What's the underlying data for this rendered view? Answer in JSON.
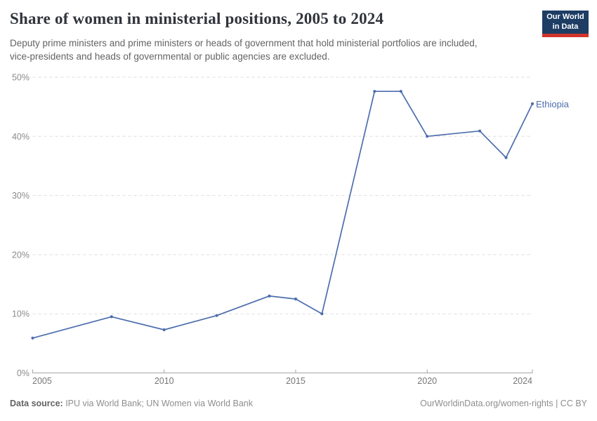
{
  "header": {
    "title": "Share of women in ministerial positions, 2005 to 2024",
    "subtitle": "Deputy prime ministers and prime ministers or heads of government that hold ministerial portfolios are included, vice-presidents and heads of governmental or public agencies are excluded.",
    "logo": {
      "line1": "Our World",
      "line2": "in Data"
    }
  },
  "chart_data": {
    "type": "line",
    "title": "Share of women in ministerial positions, 2005 to 2024",
    "xlabel": "",
    "ylabel": "",
    "xlim": [
      2005,
      2024
    ],
    "ylim": [
      0,
      50
    ],
    "x_ticks": [
      2005,
      2010,
      2015,
      2020,
      2024
    ],
    "x_tick_labels": [
      "2005",
      "2010",
      "2015",
      "2020",
      "2024"
    ],
    "y_ticks": [
      0,
      10,
      20,
      30,
      40,
      50
    ],
    "y_tick_labels": [
      "0%",
      "10%",
      "20%",
      "30%",
      "40%",
      "50%"
    ],
    "grid": "horizontal-dashed",
    "legend_position": "end-of-line",
    "series": [
      {
        "name": "Ethiopia",
        "color": "#4c6dae",
        "x": [
          2005,
          2008,
          2010,
          2012,
          2014,
          2015,
          2016,
          2018,
          2019,
          2020,
          2022,
          2023,
          2024
        ],
        "values": [
          5.9,
          9.5,
          7.3,
          9.7,
          13,
          12.5,
          10,
          47.6,
          47.6,
          40,
          40.9,
          36.4,
          45.5
        ]
      }
    ]
  },
  "footer": {
    "datasource_label": "Data source:",
    "datasource_value": " IPU via World Bank; UN Women via World Bank",
    "credit": "OurWorldinData.org/women-rights | CC BY"
  },
  "colors": {
    "line": "#4c6dae",
    "grid": "#dddddd",
    "axis": "#a5a5a5",
    "y_tick_label": "#8b8b8b",
    "x_tick_label": "#767676",
    "logo_bg": "#1d3d63",
    "logo_red": "#d1342b",
    "title_text": "#30343c",
    "subtitle_text": "#636363"
  }
}
